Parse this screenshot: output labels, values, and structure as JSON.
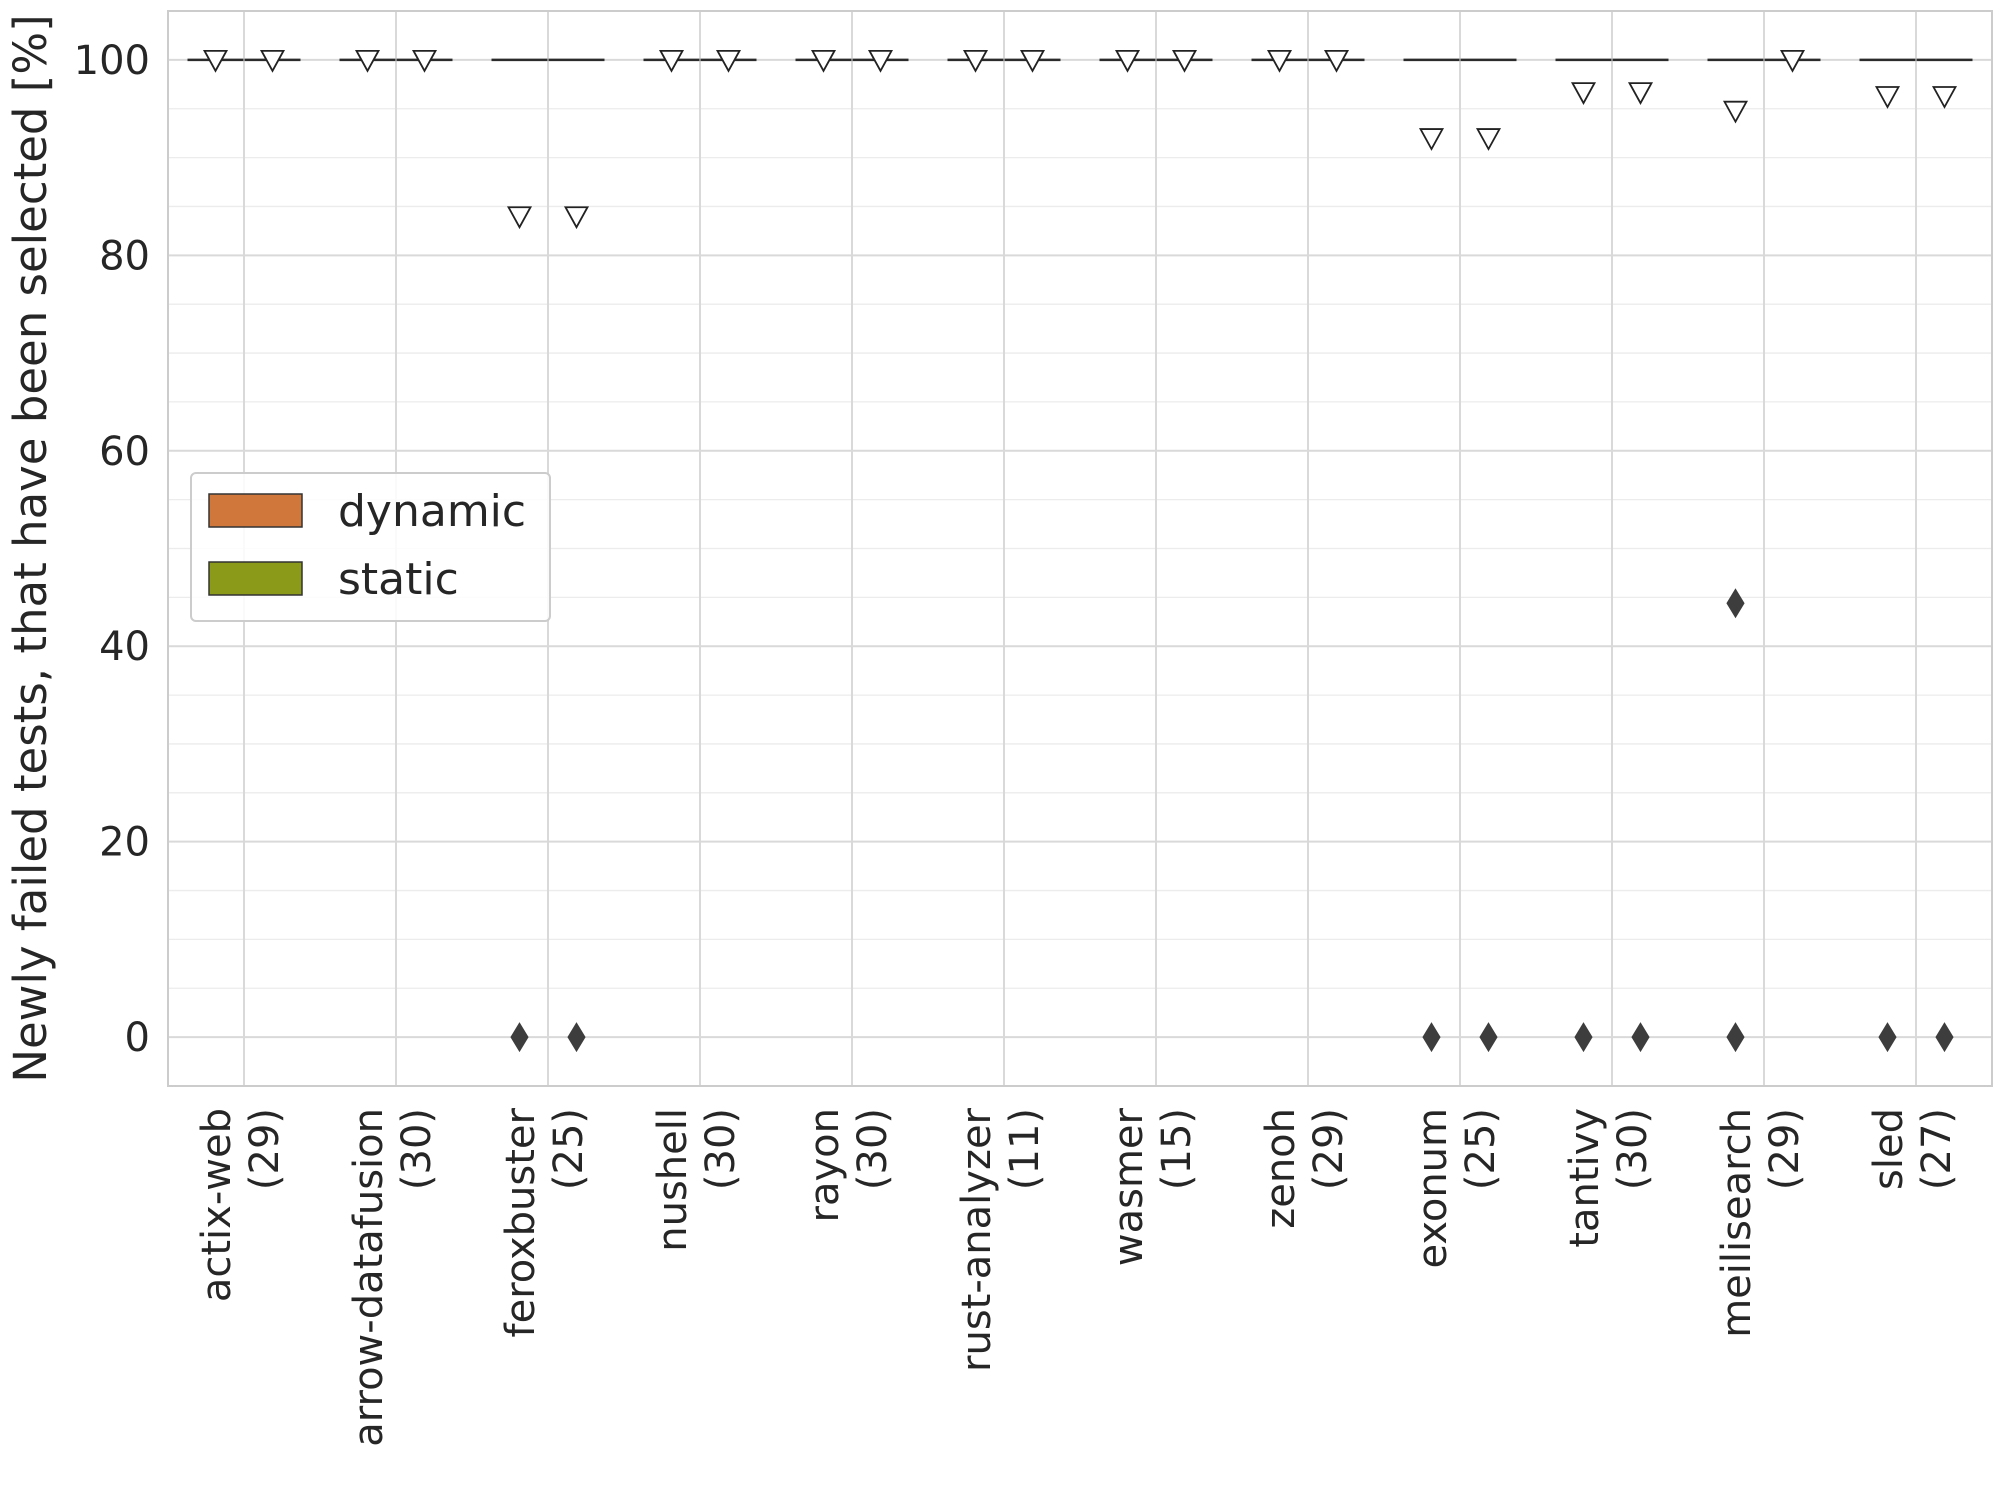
{
  "chart_data": {
    "type": "box",
    "title": "",
    "xlabel": "",
    "ylabel": "Newly failed tests, that have been selected [%]",
    "ylim": [
      -5,
      105
    ],
    "yticks": [
      0,
      20,
      40,
      60,
      80,
      100
    ],
    "grid": true,
    "legend": {
      "placement": "center-left"
    },
    "categories": [
      "actix-web\n(29)",
      "arrow-datafusion\n(30)",
      "feroxbuster\n(25)",
      "nushell\n(30)",
      "rayon\n(30)",
      "rust-analyzer\n(11)",
      "wasmer\n(15)",
      "zenoh\n(29)",
      "exonum\n(25)",
      "tantivy\n(30)",
      "meilisearch\n(29)",
      "sled\n(27)"
    ],
    "series": [
      {
        "name": "dynamic",
        "color": "#d0773c",
        "median": [
          100,
          100,
          100,
          100,
          100,
          100,
          100,
          100,
          100,
          100,
          100,
          100
        ],
        "mean": [
          100,
          100,
          84,
          100,
          100,
          100,
          100,
          100,
          92,
          96.7,
          94.8,
          96.3
        ],
        "outliers": [
          [],
          [],
          [
            0
          ],
          [],
          [],
          [],
          [],
          [],
          [
            0
          ],
          [
            0
          ],
          [
            0,
            44.4
          ],
          [
            0
          ]
        ]
      },
      {
        "name": "static",
        "color": "#8c9a1a",
        "median": [
          100,
          100,
          100,
          100,
          100,
          100,
          100,
          100,
          100,
          100,
          100,
          100
        ],
        "mean": [
          100,
          100,
          84,
          100,
          100,
          100,
          100,
          100,
          92,
          96.7,
          100,
          96.3
        ],
        "outliers": [
          [],
          [],
          [
            0
          ],
          [],
          [],
          [],
          [],
          [],
          [
            0
          ],
          [
            0
          ],
          [],
          [
            0
          ]
        ]
      }
    ]
  }
}
